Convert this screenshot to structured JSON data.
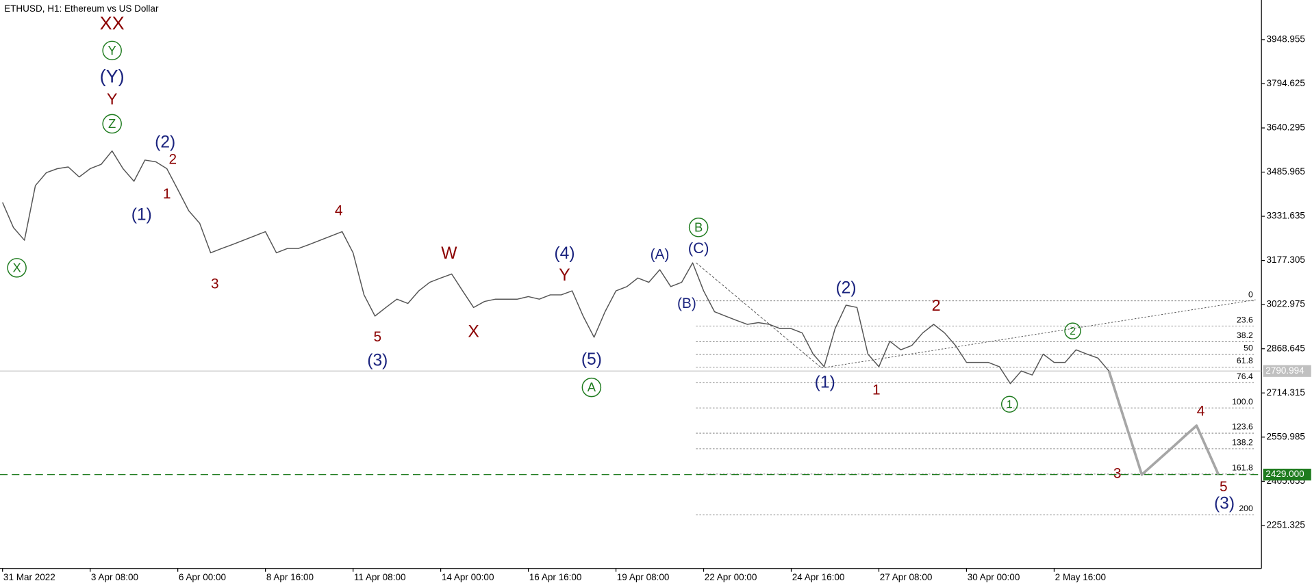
{
  "chart_data": {
    "type": "line",
    "title": "ETHUSD, H1:  Ethereum vs US Dollar",
    "categories": [
      "31 Mar 2022",
      null,
      null,
      null,
      null,
      null,
      null,
      null,
      "3 Apr 08:00",
      null,
      null,
      null,
      null,
      null,
      null,
      null,
      "6 Apr 00:00",
      null,
      null,
      null,
      null,
      null,
      null,
      null,
      "8 Apr 16:00",
      null,
      null,
      null,
      null,
      null,
      null,
      null,
      "11 Apr 08:00",
      null,
      null,
      null,
      null,
      null,
      null,
      null,
      "14 Apr 00:00",
      null,
      null,
      null,
      null,
      null,
      null,
      null,
      "16 Apr 16:00",
      null,
      null,
      null,
      null,
      null,
      null,
      null,
      "19 Apr 08:00",
      null,
      null,
      null,
      null,
      null,
      null,
      null,
      "22 Apr 00:00",
      null,
      null,
      null,
      null,
      null,
      null,
      null,
      "24 Apr 16:00",
      null,
      null,
      null,
      null,
      null,
      null,
      null,
      "27 Apr 08:00",
      null,
      null,
      null,
      null,
      null,
      null,
      null,
      "30 Apr 00:00",
      null,
      null,
      null,
      null,
      null,
      null,
      null,
      "2 May 16:00",
      null,
      null,
      null,
      null,
      null,
      null,
      null,
      null,
      null,
      null,
      null,
      null,
      null,
      null,
      null
    ],
    "series": [
      {
        "color": "#555555",
        "width": 1.2,
        "values": [
          3380,
          3292,
          3248,
          3439,
          3484,
          3498,
          3504,
          3469,
          3498,
          3513,
          3560,
          3498,
          3454,
          3528,
          3522,
          3498,
          3425,
          3351,
          3307,
          3204,
          3219,
          3233,
          3248,
          3263,
          3278,
          3204,
          3219,
          3219,
          3233,
          3248,
          3263,
          3278,
          3204,
          3057,
          2983,
          3013,
          3042,
          3027,
          3071,
          3101,
          3116,
          3130,
          3071,
          3013,
          3034,
          3042,
          3042,
          3042,
          3051,
          3042,
          3057,
          3057,
          3071,
          2983,
          2909,
          2998,
          3071,
          3086,
          3116,
          3101,
          3145,
          3086,
          3101,
          3169,
          3071,
          2998,
          2983,
          2968,
          2954,
          2960,
          2954,
          2939,
          2939,
          2924,
          2850,
          2806,
          2939,
          3021,
          3013,
          2850,
          2806,
          2895,
          2865,
          2880,
          2924,
          2954,
          2924,
          2880,
          2821,
          2821,
          2821,
          2806,
          2747,
          2791,
          2777,
          2850,
          2821,
          2821,
          2865,
          2850,
          2836,
          2791,
          null,
          null,
          null,
          null,
          null,
          null,
          null,
          null,
          null,
          null
        ]
      },
      {
        "color": "#a6a6a6",
        "width": 3,
        "values": [
          null,
          null,
          null,
          null,
          null,
          null,
          null,
          null,
          null,
          null,
          null,
          null,
          null,
          null,
          null,
          null,
          null,
          null,
          null,
          null,
          null,
          null,
          null,
          null,
          null,
          null,
          null,
          null,
          null,
          null,
          null,
          null,
          null,
          null,
          null,
          null,
          null,
          null,
          null,
          null,
          null,
          null,
          null,
          null,
          null,
          null,
          null,
          null,
          null,
          null,
          null,
          null,
          null,
          null,
          null,
          null,
          null,
          null,
          null,
          null,
          null,
          null,
          null,
          null,
          null,
          null,
          null,
          null,
          null,
          null,
          null,
          null,
          null,
          null,
          null,
          null,
          null,
          null,
          null,
          null,
          null,
          null,
          null,
          null,
          null,
          null,
          null,
          null,
          null,
          null,
          null,
          null,
          null,
          null,
          null,
          null,
          null,
          null,
          null,
          null,
          null,
          2791,
          2670,
          2550,
          2429,
          2463,
          2497,
          2531,
          2566,
          2600,
          2515,
          2429
        ]
      }
    ],
    "ylim": [
      2101.1,
      4087.4
    ],
    "yticks": [
      3948.955,
      3794.625,
      3640.295,
      3485.965,
      3331.635,
      3177.305,
      3022.975,
      2868.645,
      2714.315,
      2559.985,
      2405.655,
      2251.325
    ],
    "price_lines": [
      {
        "value": 2790.994,
        "label": "2790.994",
        "color": "#c0c0c0",
        "dashed": false
      },
      {
        "value": 2429,
        "label": "2429.000",
        "color": "#1e7b1e",
        "dashed": true
      }
    ],
    "fibonacci": {
      "price_0": 3036,
      "price_100": 2662,
      "levels": [
        0,
        23.6,
        38.2,
        50,
        61.8,
        76.4,
        {
          "value": 100,
          "label": "100.0"
        },
        123.6,
        138.2,
        161.8,
        200
      ]
    },
    "annotations": [
      {
        "text": "XX",
        "color": "#8b0000"
      },
      {
        "text": "Y",
        "color": "#1e7b1e",
        "circled": true
      },
      {
        "text": "(Y)",
        "color": "#1a237e"
      },
      {
        "text": "Y",
        "color": "#8b0000"
      },
      {
        "text": "Z",
        "color": "#1e7b1e",
        "circled": true
      },
      {
        "text": "(2)",
        "color": "#1a237e"
      },
      {
        "text": "2",
        "color": "#8b0000"
      },
      {
        "text": "1",
        "color": "#8b0000"
      },
      {
        "text": "(1)",
        "color": "#1a237e"
      },
      {
        "text": "X",
        "color": "#1e7b1e",
        "circled": true
      },
      {
        "text": "3",
        "color": "#8b0000"
      },
      {
        "text": "4",
        "color": "#8b0000"
      },
      {
        "text": "5",
        "color": "#8b0000"
      },
      {
        "text": "(3)",
        "color": "#1a237e"
      },
      {
        "text": "W",
        "color": "#8b0000"
      },
      {
        "text": "X",
        "color": "#8b0000"
      },
      {
        "text": "(4)",
        "color": "#1a237e"
      },
      {
        "text": "Y",
        "color": "#8b0000"
      },
      {
        "text": "(5)",
        "color": "#1a237e"
      },
      {
        "text": "A",
        "color": "#1e7b1e",
        "circled": true
      },
      {
        "text": "B",
        "color": "#1e7b1e",
        "circled": true
      },
      {
        "text": "(C)",
        "color": "#1a237e"
      },
      {
        "text": "(A)",
        "color": "#1a237e"
      },
      {
        "text": "(B)",
        "color": "#1a237e"
      },
      {
        "text": "(2)",
        "color": "#1a237e"
      },
      {
        "text": "(1)",
        "color": "#1a237e"
      },
      {
        "text": "1",
        "color": "#8b0000"
      },
      {
        "text": "2",
        "color": "#8b0000"
      },
      {
        "text": "1",
        "color": "#1e7b1e",
        "circled": true
      },
      {
        "text": "2",
        "color": "#1e7b1e",
        "circled": true
      },
      {
        "text": "3",
        "color": "#8b0000"
      },
      {
        "text": "4",
        "color": "#8b0000"
      },
      {
        "text": "5",
        "color": "#8b0000"
      },
      {
        "text": "(3)",
        "color": "#1a237e"
      }
    ]
  }
}
